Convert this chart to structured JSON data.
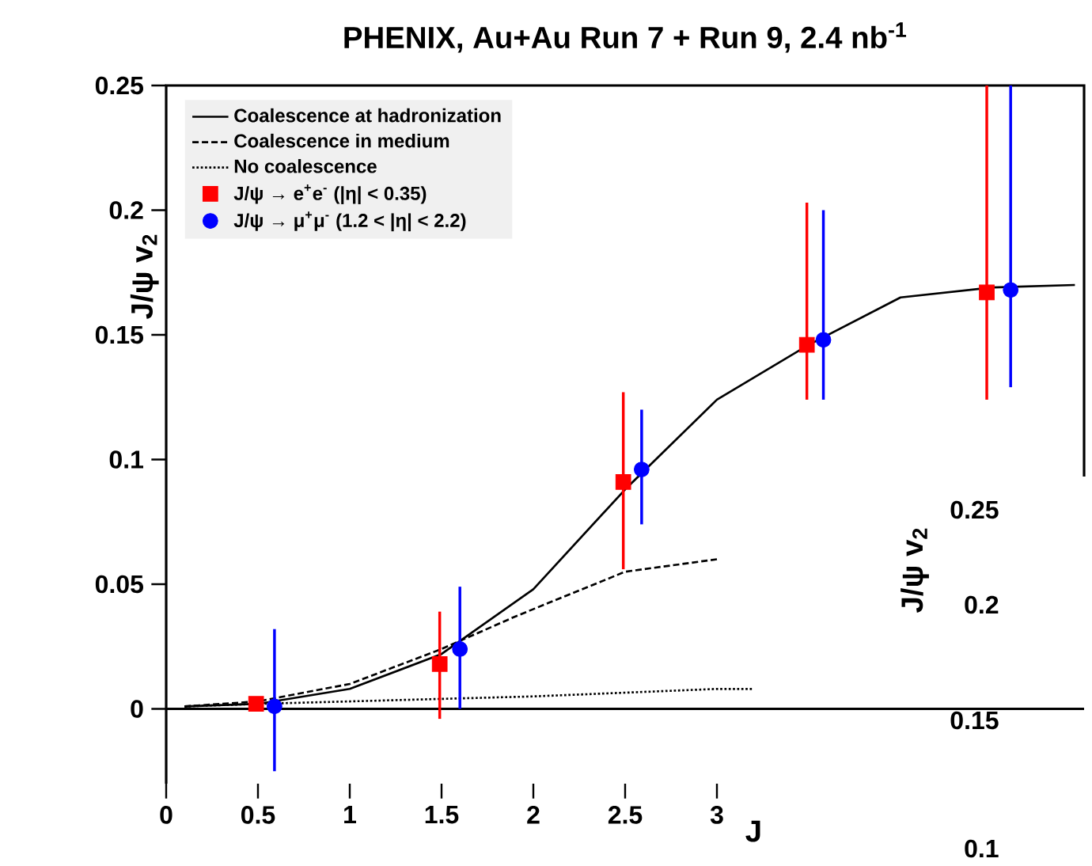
{
  "chart_data": [
    {
      "type": "line",
      "title": "PHENIX, Au+Au Run 7 + Run 9, 2.4 nb$^{-1}$",
      "xlabel": "J",
      "ylabel": "J/ψ v$_{2}$",
      "xlim": [
        0,
        5
      ],
      "ylim": [
        -0.03,
        0.25
      ],
      "xticks": [
        0,
        0.5,
        1,
        1.5,
        2,
        2.5,
        3
      ],
      "yticks": [
        0,
        0.05,
        0.1,
        0.15,
        0.2,
        0.25
      ],
      "legend": "top left",
      "grid": false,
      "ref_lines": [
        {
          "axis": "y",
          "value": 0,
          "color": "#000000",
          "line_style": "solid"
        }
      ],
      "series": [
        {
          "name": "Coalescence at hadronization",
          "color": "#000000",
          "line_style": "solid",
          "x": [
            0.1,
            0.5,
            1,
            1.5,
            2,
            2.5,
            3,
            3.5,
            4,
            4.5,
            4.95
          ],
          "values": [
            0.001,
            0.002,
            0.008,
            0.022,
            0.048,
            0.088,
            0.124,
            0.146,
            0.165,
            0.169,
            0.17
          ]
        },
        {
          "name": "Coalescence in medium",
          "color": "#000000",
          "line_style": "dashed",
          "x": [
            0.1,
            0.5,
            1,
            1.5,
            1.9,
            2.5,
            3
          ],
          "values": [
            0.001,
            0.003,
            0.01,
            0.024,
            0.037,
            0.055,
            0.06
          ]
        },
        {
          "name": "No coalescence",
          "color": "#000000",
          "line_style": "dotted",
          "x": [
            0.1,
            0.5,
            1,
            2,
            3,
            3.2
          ],
          "values": [
            0.001,
            0.002,
            0.003,
            0.005,
            0.008,
            0.008
          ]
        },
        {
          "name": "J/ψ → e$^{+}$e$^{-}$   (|η| < 0.35)",
          "type": "scatter",
          "marker": "square",
          "color": "#ff0000",
          "x": [
            0.49,
            1.49,
            2.49,
            3.49,
            4.47
          ],
          "values": [
            0.002,
            0.018,
            0.091,
            0.146,
            0.167
          ],
          "errors": [
            null,
            [
              -0.004,
              0.039
            ],
            [
              0.056,
              0.127
            ],
            [
              0.124,
              0.203
            ],
            [
              0.124,
              0.25
            ]
          ]
        },
        {
          "name": "J/ψ → μ$^{+}$μ$^{-}$   (1.2 < |η| < 2.2)",
          "type": "scatter",
          "marker": "circle",
          "color": "#0000ff",
          "x": [
            0.59,
            1.6,
            2.59,
            3.58,
            4.6
          ],
          "values": [
            0.001,
            0.024,
            0.096,
            0.148,
            0.168
          ],
          "errors": [
            [
              -0.025,
              0.032
            ],
            [
              0,
              0.049
            ],
            [
              0.074,
              0.12
            ],
            [
              0.124,
              0.2
            ],
            [
              0.129,
              0.25
            ]
          ]
        }
      ]
    },
    {
      "type": "other",
      "ylabel": "J/ψ v$_{2}$",
      "annotations": [
        "0.25",
        "0.2",
        "0.15",
        "0.1"
      ]
    }
  ]
}
